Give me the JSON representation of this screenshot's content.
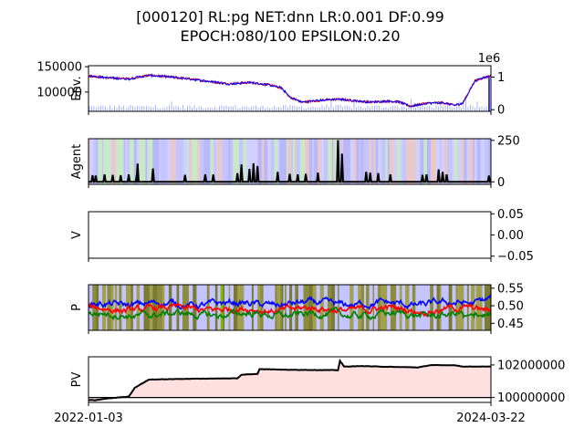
{
  "title": {
    "line1": "[000120] RL:pg NET:dnn LR:0.001 DF:0.99",
    "line2": "EPOCH:080/100 EPSILON:0.20"
  },
  "x_tick_labels": [
    "2022-01-03",
    "2024-03-22"
  ],
  "chart_data": [
    {
      "type": "line",
      "ylabel": "Env.",
      "y_tick_labels": [
        "100000",
        "150000"
      ],
      "y_ticks": [
        100000,
        150000
      ],
      "ylim": [
        62000,
        152000
      ],
      "y2_tick_labels": [
        "0",
        "1"
      ],
      "y2_ticks": [
        0,
        1
      ],
      "y2lim": [
        -0.05,
        1.35
      ],
      "y2_offset_text": "1e6",
      "price_trend": [
        [
          0,
          132000
        ],
        [
          5,
          128000
        ],
        [
          10,
          126000
        ],
        [
          15,
          133000
        ],
        [
          20,
          130000
        ],
        [
          25,
          126000
        ],
        [
          30,
          121000
        ],
        [
          35,
          116000
        ],
        [
          40,
          119000
        ],
        [
          45,
          114000
        ],
        [
          48,
          108000
        ],
        [
          50,
          90000
        ],
        [
          53,
          80000
        ],
        [
          58,
          84000
        ],
        [
          62,
          86000
        ],
        [
          66,
          83000
        ],
        [
          70,
          80000
        ],
        [
          74,
          82000
        ],
        [
          77,
          81000
        ],
        [
          80,
          72000
        ],
        [
          84,
          78000
        ],
        [
          88,
          79000
        ],
        [
          91,
          74000
        ],
        [
          93,
          78000
        ],
        [
          96,
          122000
        ],
        [
          98,
          128000
        ],
        [
          100,
          132000
        ]
      ],
      "series": [
        {
          "color": "#0000ff"
        },
        {
          "color": "#ff0000"
        },
        {
          "color": "#aab4ff"
        }
      ]
    },
    {
      "type": "line",
      "ylabel": "Agent",
      "y2_tick_labels": [
        "0",
        "250"
      ],
      "y2_ticks": [
        0,
        250
      ],
      "y2lim": [
        -15,
        260
      ],
      "spikes": [
        [
          1.0,
          40
        ],
        [
          1.8,
          38
        ],
        [
          4,
          45
        ],
        [
          6,
          42
        ],
        [
          8,
          40
        ],
        [
          10,
          45
        ],
        [
          12,
          42
        ],
        [
          12.2,
          110
        ],
        [
          16,
          80
        ],
        [
          24,
          42
        ],
        [
          29,
          45
        ],
        [
          31,
          44
        ],
        [
          37,
          52
        ],
        [
          38,
          105
        ],
        [
          40,
          78
        ],
        [
          41,
          112
        ],
        [
          42,
          95
        ],
        [
          47,
          60
        ],
        [
          50,
          48
        ],
        [
          52,
          45
        ],
        [
          54,
          48
        ],
        [
          57,
          55
        ],
        [
          62,
          252
        ],
        [
          63,
          170
        ],
        [
          69,
          60
        ],
        [
          70,
          55
        ],
        [
          72,
          52
        ],
        [
          75,
          45
        ],
        [
          83,
          42
        ],
        [
          84,
          45
        ],
        [
          87,
          75
        ],
        [
          88,
          60
        ],
        [
          89,
          45
        ],
        [
          99.5,
          38
        ]
      ],
      "series": [
        {
          "color": "#000000"
        }
      ]
    },
    {
      "type": "line",
      "ylabel": "V",
      "y2_tick_labels": [
        "0.05",
        "0.00",
        "−0.05"
      ],
      "y2_ticks": [
        0.05,
        0.0,
        -0.05
      ],
      "y2lim": [
        -0.055,
        0.055
      ],
      "series": []
    },
    {
      "type": "line",
      "ylabel": "P",
      "y2_tick_labels": [
        "0.55",
        "0.50",
        "0.45"
      ],
      "y2_ticks": [
        0.55,
        0.5,
        0.45
      ],
      "y2lim": [
        0.43,
        0.56
      ],
      "series": [
        {
          "color": "#0000ff",
          "level": 0.505
        },
        {
          "color": "#ff0000",
          "level": 0.49
        },
        {
          "color": "#008000",
          "level": 0.475
        }
      ]
    },
    {
      "type": "area",
      "ylabel": "PV",
      "y2_tick_labels": [
        "102000000",
        "100000000"
      ],
      "y2_ticks": [
        102000000,
        100000000
      ],
      "y2lim": [
        99700000,
        102500000
      ],
      "values": [
        [
          0,
          99850000
        ],
        [
          1.5,
          99830000
        ],
        [
          5,
          99950000
        ],
        [
          10,
          100060000
        ],
        [
          11.5,
          100600000
        ],
        [
          15,
          101100000
        ],
        [
          25,
          101150000
        ],
        [
          37,
          101180000
        ],
        [
          38,
          101400000
        ],
        [
          42,
          101450000
        ],
        [
          42.5,
          101750000
        ],
        [
          50,
          101700000
        ],
        [
          62,
          101680000
        ],
        [
          62.5,
          102250000
        ],
        [
          63.5,
          101900000
        ],
        [
          68,
          101930000
        ],
        [
          75,
          101880000
        ],
        [
          82,
          101850000
        ],
        [
          85,
          101990000
        ],
        [
          91,
          101980000
        ],
        [
          93,
          101900000
        ],
        [
          100,
          101900000
        ]
      ],
      "series": [
        {
          "color": "#000000"
        },
        {
          "color": "#ffe0e0"
        }
      ]
    }
  ]
}
